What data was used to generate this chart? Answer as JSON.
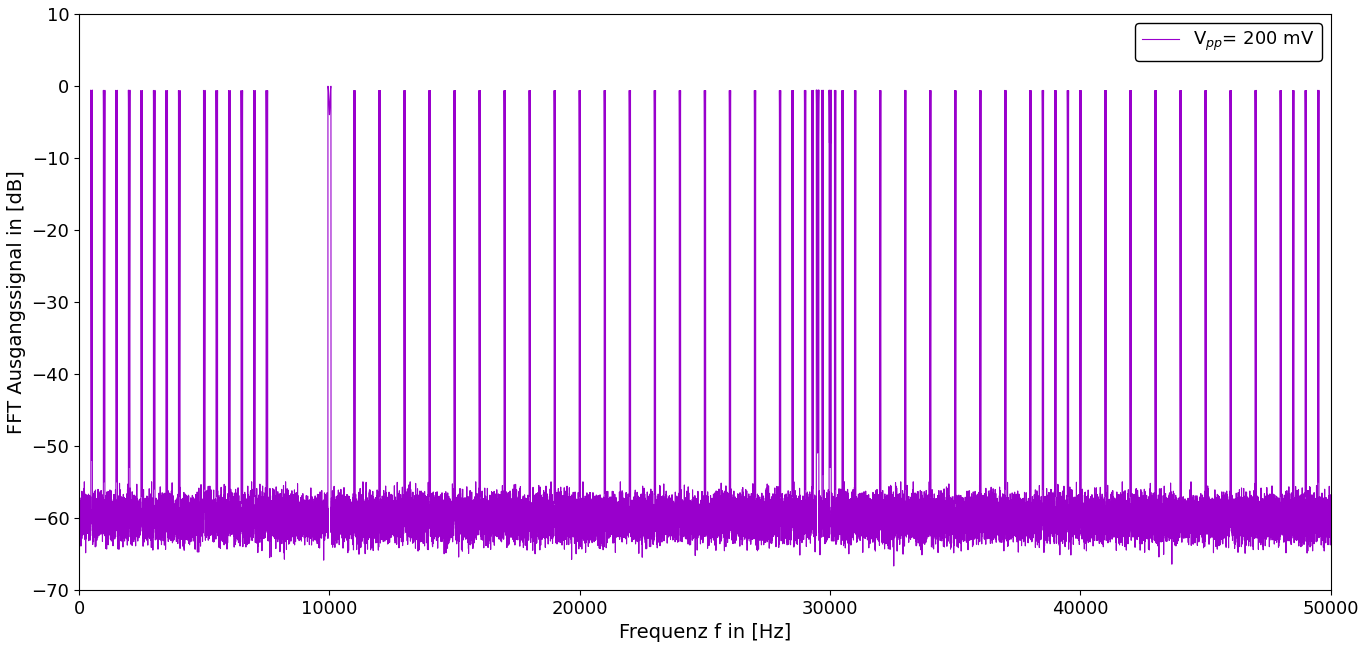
{
  "title": "",
  "xlabel": "Frequenz f in [Hz]",
  "ylabel": "FFT Ausgangssignal in [dB]",
  "xlim": [
    0,
    50000
  ],
  "ylim": [
    -70,
    10
  ],
  "yticks": [
    10,
    0,
    -10,
    -20,
    -30,
    -40,
    -50,
    -60,
    -70
  ],
  "xticks": [
    0,
    10000,
    20000,
    30000,
    40000,
    50000
  ],
  "line_color": "#9900cc",
  "legend_label": "V$_{pp}$= 200 mV",
  "background_color": "#ffffff",
  "noise_floor": -60.0,
  "main_peak_freq": 10000,
  "main_peak_db": -4.0,
  "secondary_peak_freq": 29500,
  "secondary_peak_db": -51.0,
  "font_size": 14,
  "legend_font_size": 13
}
